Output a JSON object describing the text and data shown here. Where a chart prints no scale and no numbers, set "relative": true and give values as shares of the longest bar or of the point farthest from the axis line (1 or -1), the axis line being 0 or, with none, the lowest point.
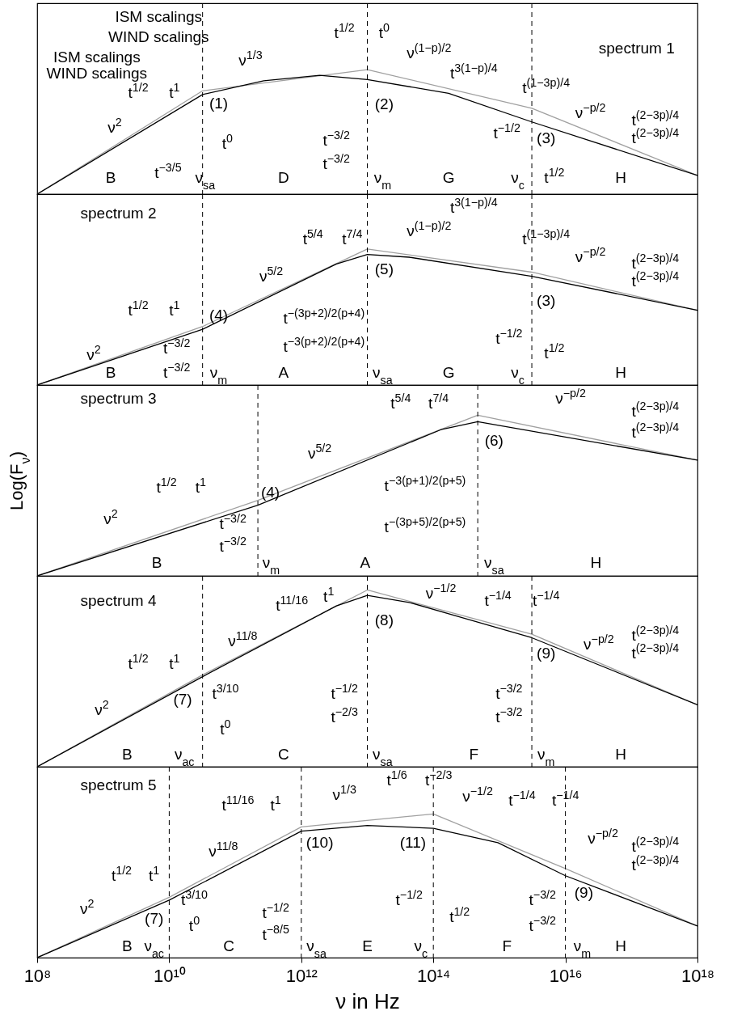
{
  "chart_data": [
    {
      "type": "line",
      "relative": true,
      "log": "x",
      "xlim": [
        100000000.0,
        1e+18
      ],
      "tick_labels": false,
      "series": [
        {
          "color": "#a0a0a0",
          "x": [
            100000000.0,
            32000000000.0,
            10000000000000.0,
            3100000000000000.0,
            1e+18
          ],
          "values": [
            0,
            0.83,
            1,
            0.69,
            0.15
          ]
        },
        {
          "color": "#000000",
          "x": [
            100000000.0,
            32000000000.0,
            270000000000.0,
            1900000000000.0,
            10000000000000.0,
            170000000000000.0,
            3100000000000000.0,
            1e+18
          ],
          "values": [
            0,
            0.8,
            0.91,
            0.955,
            0.92,
            0.81,
            0.58,
            0.15
          ]
        }
      ],
      "ref_lines": [
        {
          "axis": "x",
          "value": 32000000000.0,
          "color": "#000000",
          "line_style": "dashed"
        },
        {
          "axis": "x",
          "value": 10000000000000.0,
          "color": "#000000",
          "line_style": "dashed"
        },
        {
          "axis": "x",
          "value": 3100000000000000.0,
          "color": "#000000",
          "line_style": "dashed"
        }
      ],
      "annotations": [
        "ISM scalings",
        "WIND scalings",
        "ISM scalings",
        "WIND scalings",
        "t$^{1/2}$",
        "t$^{1}$",
        "ν$^{2}$",
        "(1)",
        "ν$^{1/3}$",
        "t$^{1/2}$",
        "t$^{0}$",
        "ν$^{(1−p)/2}$",
        "(2)",
        "t$^{3(1−p)/4}$",
        "t$^{(1−3p)/4}$",
        "spectrum 1",
        "ν$^{−p/2}$",
        "t$^{(2−3p)/4}$",
        "t$^{(2−3p)/4}$",
        "(3)",
        "t$^{−1/2}$",
        "t$^{1/2}$",
        "B",
        "D",
        "G",
        "H",
        "ν$_{sa}$",
        "ν$_{m}$",
        "ν$_{c}$",
        "t$^{−3/5}$",
        "t$^{0}$",
        "t$^{−3/2}$",
        "t$^{−3/2}$"
      ]
    },
    {
      "type": "line",
      "relative": true,
      "log": "x",
      "xlim": [
        100000000.0,
        1e+18
      ],
      "tick_labels": false,
      "series": [
        {
          "color": "#a0a0a0",
          "x": [
            100000000.0,
            32000000000.0,
            10000000000000.0,
            3100000000000000.0,
            1e+18
          ],
          "values": [
            0,
            0.43,
            1,
            0.83,
            0.55
          ]
        },
        {
          "color": "#000000",
          "x": [
            100000000.0,
            32000000000.0,
            3400000000000.0,
            10000000000000.0,
            43000000000000.0,
            3100000000000000.0,
            1e+18
          ],
          "values": [
            0,
            0.41,
            0.89,
            0.96,
            0.94,
            0.8,
            0.55
          ]
        }
      ],
      "ref_lines": [
        {
          "axis": "x",
          "value": 32000000000.0,
          "color": "#000000",
          "line_style": "dashed"
        },
        {
          "axis": "x",
          "value": 10000000000000.0,
          "color": "#000000",
          "line_style": "dashed"
        },
        {
          "axis": "x",
          "value": 3100000000000000.0,
          "color": "#000000",
          "line_style": "dashed"
        }
      ],
      "annotations": [
        "spectrum 2",
        "t$^{5/4}$",
        "t$^{7/4}$",
        "ν$^{(1−p)/2}$",
        "t$^{3(1−p)/4}$",
        "t$^{(1−3p)/4}$",
        "ν$^{−p/2}$",
        "(5)",
        "ν$^{5/2}$",
        "t$^{1/2}$",
        "t$^{1}$",
        "ν$^{2}$",
        "(4)",
        "t$^{−3/2}$",
        "t$^{−3/2}$",
        "B",
        "ν$_{m}$",
        "A",
        "ν$_{sa}$",
        "G",
        "ν$_{c}$",
        "H",
        "t$^{−(3p+2)/2(p+4)}$",
        "t$^{−3(p+2)/2(p+4)}$",
        "t$^{−1/2}$",
        "(3)",
        "t$^{1/2}$",
        "t$^{(2−3p)/4}$",
        "t$^{(2−3p)/4}$"
      ]
    },
    {
      "type": "line",
      "relative": true,
      "log": "x",
      "xlim": [
        100000000.0,
        1e+18
      ],
      "tick_labels": false,
      "ylabel": "Log(F$_{ν}$)",
      "series": [
        {
          "color": "#a0a0a0",
          "x": [
            100000000.0,
            220000000000.0,
            470000000000000.0,
            1e+18
          ],
          "values": [
            0,
            0.47,
            1,
            0.72
          ]
        },
        {
          "color": "#000000",
          "x": [
            100000000.0,
            220000000000.0,
            130000000000000.0,
            470000000000000.0,
            1e+18
          ],
          "values": [
            0,
            0.44,
            0.91,
            0.96,
            0.72
          ]
        }
      ],
      "ref_lines": [
        {
          "axis": "x",
          "value": 220000000000.0,
          "color": "#000000",
          "line_style": "dashed"
        },
        {
          "axis": "x",
          "value": 470000000000000.0,
          "color": "#000000",
          "line_style": "dashed"
        }
      ],
      "annotations": [
        "spectrum 3",
        "t$^{5/4}$",
        "t$^{7/4}$",
        "ν$^{−p/2}$",
        "t$^{(2−3p)/4}$",
        "t$^{(2−3p)/4}$",
        "(6)",
        "ν$^{5/2}$",
        "t$^{1/2}$",
        "t$^{1}$",
        "ν$^{2}$",
        "(4)",
        "t$^{−3/2}$",
        "t$^{−3/2}$",
        "B",
        "ν$_{m}$",
        "A",
        "ν$_{sa}$",
        "H",
        "t$^{−3(p+1)/2(p+5)}$",
        "t$^{−(3p+5)/2(p+5)}$"
      ]
    },
    {
      "type": "line",
      "relative": true,
      "log": "x",
      "xlim": [
        100000000.0,
        1e+18
      ],
      "tick_labels": false,
      "series": [
        {
          "color": "#a0a0a0",
          "x": [
            100000000.0,
            32000000000.0,
            10000000000000.0,
            3100000000000000.0,
            1e+18
          ],
          "values": [
            0,
            0.52,
            1,
            0.75,
            0.35
          ]
        },
        {
          "color": "#000000",
          "x": [
            100000000.0,
            32000000000.0,
            3400000000000.0,
            10000000000000.0,
            43000000000000.0,
            3100000000000000.0,
            1e+18
          ],
          "values": [
            0,
            0.51,
            0.91,
            0.97,
            0.93,
            0.73,
            0.35
          ]
        }
      ],
      "ref_lines": [
        {
          "axis": "x",
          "value": 32000000000.0,
          "color": "#000000",
          "line_style": "dashed"
        },
        {
          "axis": "x",
          "value": 10000000000000.0,
          "color": "#000000",
          "line_style": "dashed"
        },
        {
          "axis": "x",
          "value": 3100000000000000.0,
          "color": "#000000",
          "line_style": "dashed"
        }
      ],
      "annotations": [
        "spectrum 4",
        "t$^{11/16}$",
        "t$^{1}$",
        "ν$^{−1/2}$",
        "t$^{−1/4}$",
        "t$^{−1/4}$",
        "ν$^{−p/2}$",
        "t$^{(2−3p)/4}$",
        "t$^{(2−3p)/4}$",
        "(8)",
        "(9)",
        "ν$^{11/8}$",
        "t$^{1/2}$",
        "t$^{1}$",
        "ν$^{2}$",
        "(7)",
        "t$^{3/10}$",
        "t$^{0}$",
        "t$^{−1/2}$",
        "t$^{−2/3}$",
        "t$^{−3/2}$",
        "t$^{−3/2}$",
        "B",
        "ν$_{ac}$",
        "C",
        "ν$_{sa}$",
        "F",
        "ν$_{m}$",
        "H"
      ]
    },
    {
      "type": "line",
      "relative": true,
      "log": "x",
      "xlim": [
        100000000.0,
        1e+18
      ],
      "tick_labels": "x",
      "xlabel": "ν  in  Hz",
      "xticks": [
        {
          "value": 100000000.0,
          "label": "10⁸"
        },
        {
          "value": 10000000000.0,
          "label": "10¹⁰"
        },
        {
          "value": 1000000000000.0,
          "label": "10¹²"
        },
        {
          "value": 100000000000000.0,
          "label": "10¹⁴"
        },
        {
          "value": 1e+16,
          "label": "10¹⁶"
        },
        {
          "value": 1e+18,
          "label": "10¹⁸"
        }
      ],
      "series": [
        {
          "color": "#a0a0a0",
          "x": [
            100000000.0,
            10000000000.0,
            1000000000000.0,
            100000000000000.0,
            1e+16,
            1e+18
          ],
          "values": [
            0,
            0.42,
            0.91,
            1,
            0.62,
            0.22
          ]
        },
        {
          "color": "#000000",
          "x": [
            100000000.0,
            10000000000.0,
            1000000000000.0,
            10000000000000.0,
            100000000000000.0,
            950000000000000.0,
            1e+16,
            1e+18
          ],
          "values": [
            0,
            0.4,
            0.88,
            0.92,
            0.9,
            0.8,
            0.57,
            0.22
          ]
        }
      ],
      "ref_lines": [
        {
          "axis": "x",
          "value": 10000000000.0,
          "color": "#000000",
          "line_style": "dashed"
        },
        {
          "axis": "x",
          "value": 1000000000000.0,
          "color": "#000000",
          "line_style": "dashed"
        },
        {
          "axis": "x",
          "value": 100000000000000.0,
          "color": "#000000",
          "line_style": "dashed"
        },
        {
          "axis": "x",
          "value": 1e+16,
          "color": "#000000",
          "line_style": "dashed"
        }
      ],
      "annotations": [
        "spectrum 5",
        "t$^{11/16}$",
        "t$^{1}$",
        "ν$^{1/3}$",
        "t$^{1/6}$",
        "t$^{−2/3}$",
        "ν$^{−1/2}$",
        "t$^{−1/4}$",
        "t$^{−1/4}$",
        "ν$^{−p/2}$",
        "t$^{(2−3p)/4}$",
        "t$^{(2−3p)/4}$",
        "(10)",
        "(11)",
        "(9)",
        "ν$^{11/8}$",
        "t$^{1/2}$",
        "t$^{1}$",
        "ν$^{2}$",
        "(7)",
        "t$^{3/10}$",
        "t$^{0}$",
        "t$^{−1/2}$",
        "t$^{−8/5}$",
        "t$^{−1/2}$",
        "t$^{1/2}$",
        "t$^{−3/2}$",
        "t$^{−3/2}$",
        "B",
        "ν$_{ac}$",
        "C",
        "ν$_{sa}$",
        "E",
        "ν$_{c}$",
        "F",
        "ν$_{m}$",
        "H"
      ]
    }
  ]
}
